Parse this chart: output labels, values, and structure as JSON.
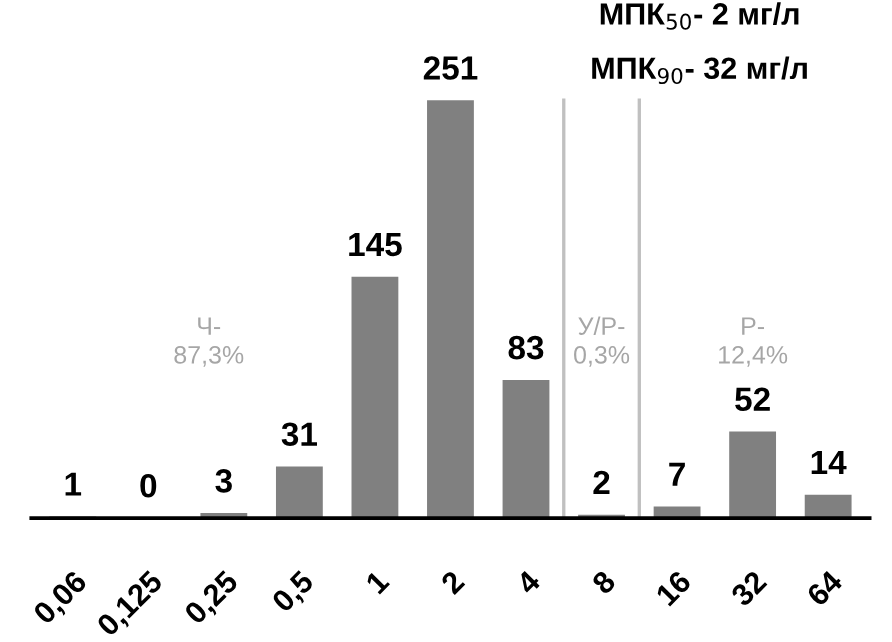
{
  "chart_data": {
    "type": "bar",
    "categories": [
      "0,06",
      "0,125",
      "0,25",
      "0,5",
      "1",
      "2",
      "4",
      "8",
      "16",
      "32",
      "64"
    ],
    "values": [
      1,
      0,
      3,
      31,
      145,
      251,
      83,
      2,
      7,
      52,
      14
    ],
    "color": "#808080",
    "data_labels": true,
    "grid": false,
    "legend": false,
    "annotations": [
      "Ч-\n87,3%",
      "У/Р-\n0,3%",
      "Р-\n12,4%",
      "МПК$_{50}$- 2 мг/л",
      "МПК$_{90}$- 32 мг/л"
    ]
  }
}
